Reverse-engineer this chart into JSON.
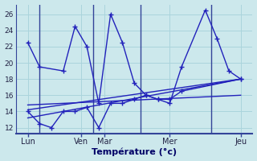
{
  "xlabel": "Température (°c)",
  "background_color": "#cce8ec",
  "line_color": "#2222bb",
  "grid_color": "#aad4dc",
  "vline_color": "#334499",
  "ytick_values": [
    12,
    14,
    16,
    18,
    20,
    22,
    24,
    26
  ],
  "ylim": [
    11.3,
    27.2
  ],
  "xlim": [
    0,
    20
  ],
  "day_labels": [
    "Lun",
    "Ven",
    "Mar",
    "Mer",
    "Jeu"
  ],
  "day_tick_positions": [
    1,
    5.5,
    7.5,
    13,
    19
  ],
  "vline_x": [
    2.0,
    6.5,
    10.5,
    16.5
  ],
  "main_x": [
    1,
    2,
    4,
    5,
    6,
    7,
    8,
    9,
    10,
    11,
    12,
    13,
    14,
    16,
    17,
    18,
    19
  ],
  "main_y": [
    22.5,
    19.5,
    19.0,
    24.5,
    22.0,
    15.0,
    26.0,
    22.5,
    17.5,
    16.0,
    15.5,
    15.0,
    19.5,
    26.5,
    23.0,
    19.0,
    18.0
  ],
  "min_x": [
    1,
    2,
    3,
    4,
    5,
    6,
    7,
    8,
    9,
    10,
    11,
    12,
    13,
    14,
    19
  ],
  "min_y": [
    14.0,
    12.5,
    12.0,
    14.0,
    14.0,
    14.5,
    12.0,
    15.0,
    15.0,
    15.5,
    16.0,
    15.5,
    15.5,
    16.5,
    18.0
  ],
  "trend1_x": [
    1,
    19
  ],
  "trend1_y": [
    13.2,
    18.0
  ],
  "trend2_x": [
    1,
    19
  ],
  "trend2_y": [
    14.2,
    18.0
  ],
  "trend3_x": [
    1,
    19
  ],
  "trend3_y": [
    14.8,
    16.0
  ]
}
